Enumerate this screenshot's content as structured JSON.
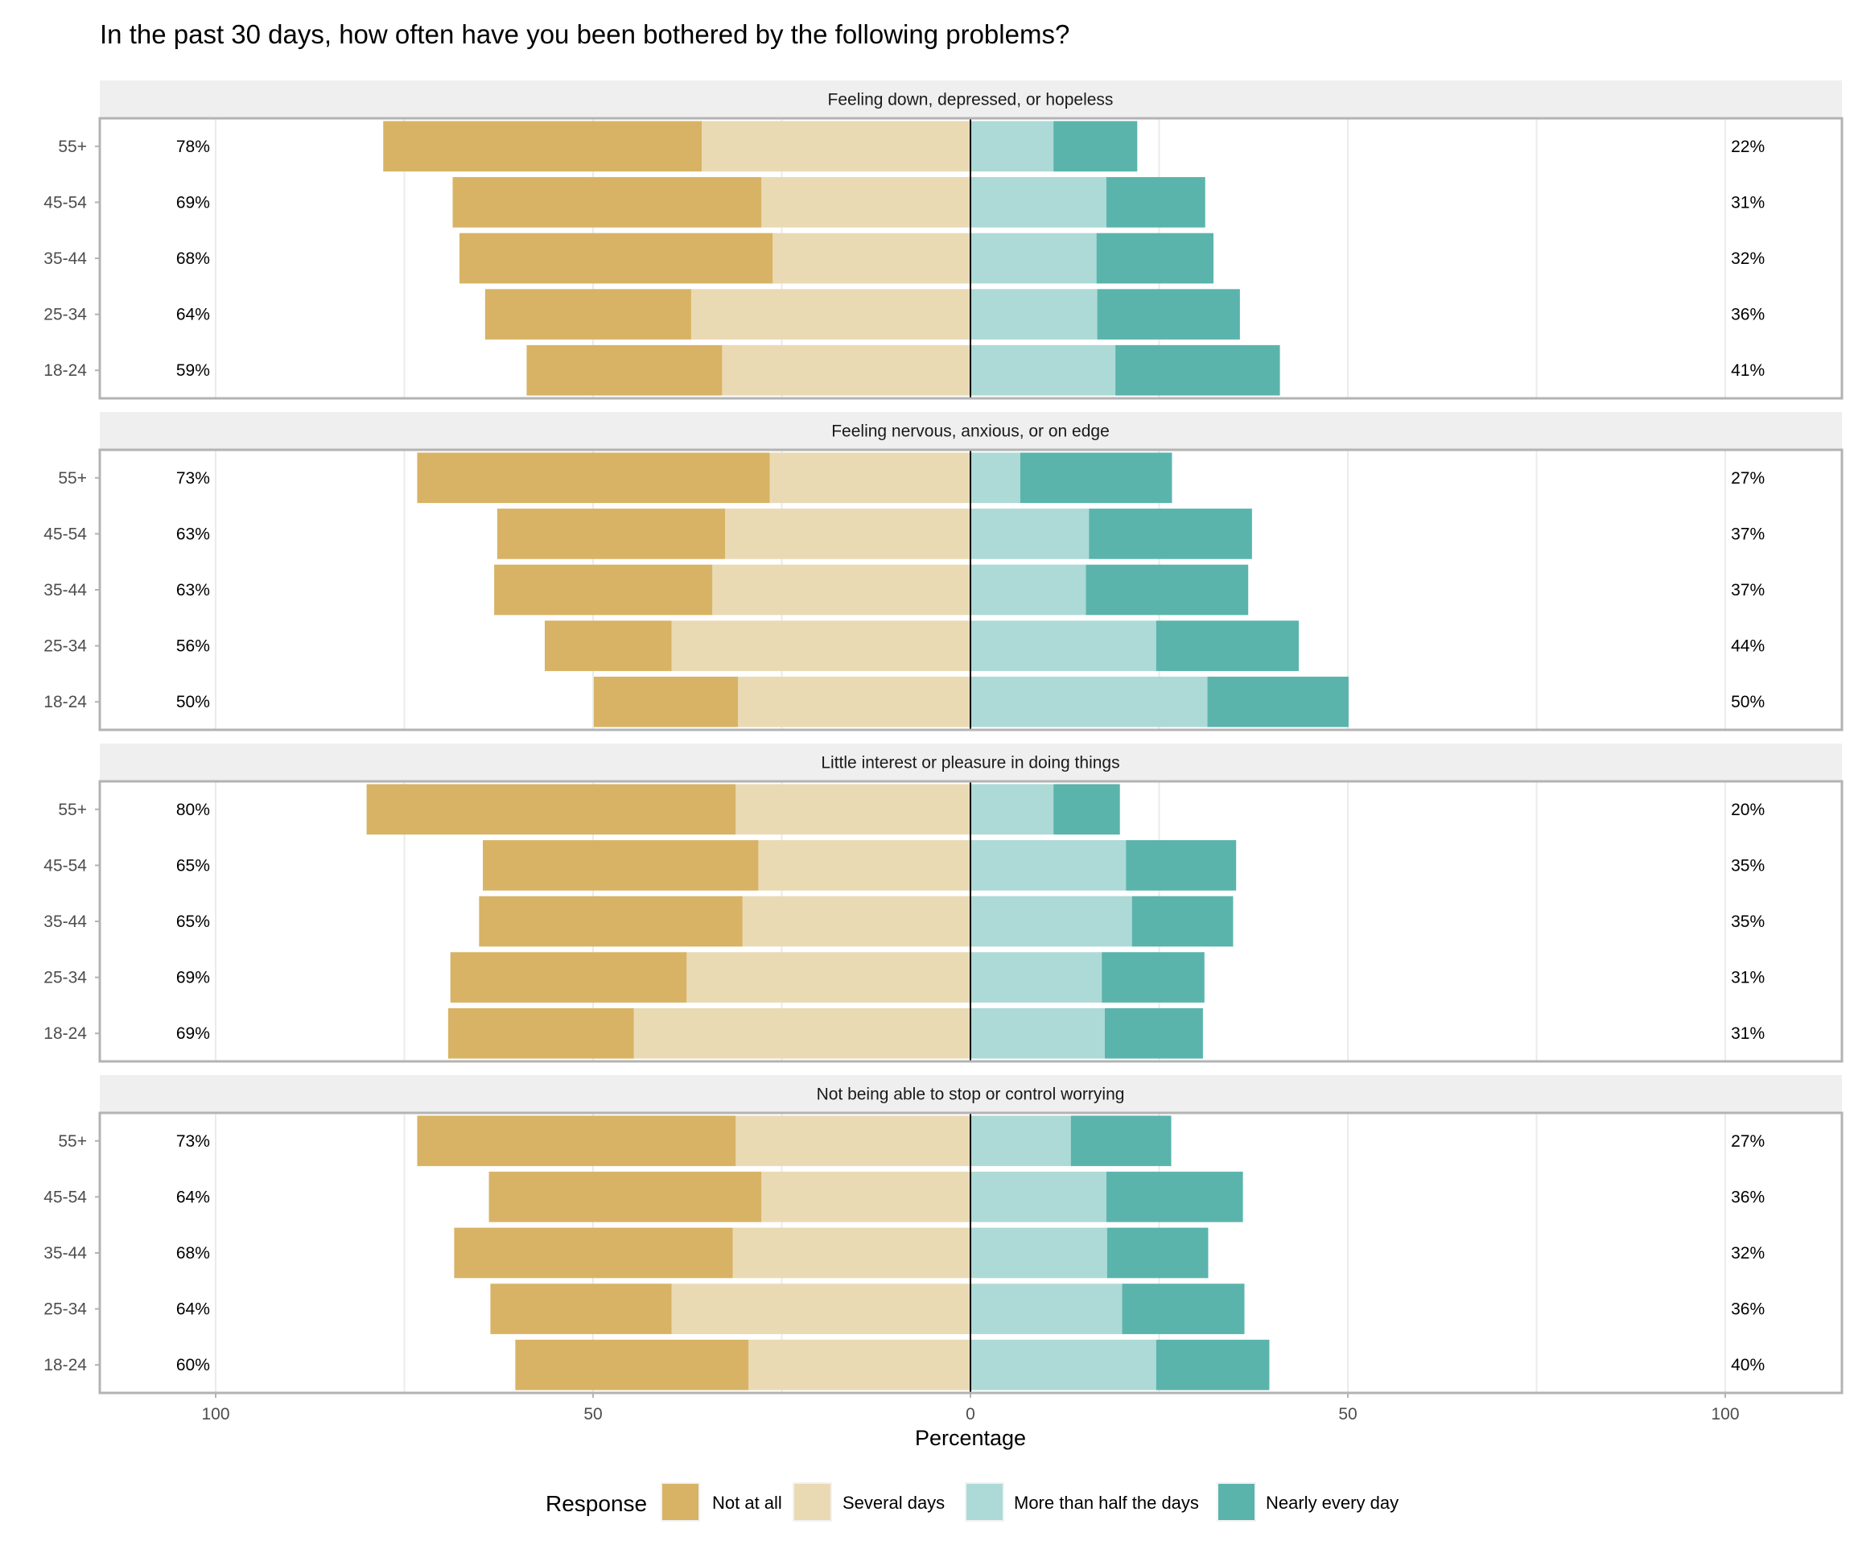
{
  "chart_data": {
    "type": "bar",
    "subtype": "diverging-stacked-horizontal",
    "title": "In the past 30 days, how often have you been bothered by the following problems?",
    "xlabel": "Percentage",
    "ylabel": "",
    "xlim": [
      -115,
      115
    ],
    "x_ticks": [
      -100,
      -50,
      0,
      50,
      100
    ],
    "x_tick_labels": [
      "100",
      "50",
      "0",
      "50",
      "100"
    ],
    "grid": true,
    "categories": [
      "55+",
      "45-54",
      "35-44",
      "25-34",
      "18-24"
    ],
    "legend": {
      "title": "Response",
      "position": "bottom",
      "entries": [
        "Not at all",
        "Several days",
        "More than half the days",
        "Nearly every day"
      ]
    },
    "colors": {
      "Not at all": "#d8b365",
      "Several days": "#eadab4",
      "More than half the days": "#addad6",
      "Nearly every day": "#5ab4ac"
    },
    "negative_series": [
      "Not at all",
      "Several days"
    ],
    "positive_series": [
      "More than half the days",
      "Nearly every day"
    ],
    "panels": [
      {
        "facet": "Feeling down, depressed, or hopeless",
        "series": [
          {
            "name": "Not at all",
            "values": [
              42.2,
              40.9,
              41.5,
              27.3,
              25.9
            ]
          },
          {
            "name": "Several days",
            "values": [
              35.6,
              27.7,
              26.2,
              37.0,
              32.9
            ]
          },
          {
            "name": "More than half the days",
            "values": [
              11.0,
              18.0,
              16.7,
              16.8,
              19.2
            ]
          },
          {
            "name": "Nearly every day",
            "values": [
              11.1,
              13.1,
              15.5,
              18.9,
              21.8
            ]
          }
        ],
        "left_labels": [
          "78%",
          "69%",
          "68%",
          "64%",
          "59%"
        ],
        "right_labels": [
          "22%",
          "31%",
          "32%",
          "36%",
          "41%"
        ]
      },
      {
        "facet": "Feeling nervous, anxious, or on edge",
        "series": [
          {
            "name": "Not at all",
            "values": [
              46.7,
              30.2,
              28.9,
              16.8,
              19.1
            ]
          },
          {
            "name": "Several days",
            "values": [
              26.6,
              32.5,
              34.2,
              39.6,
              30.8
            ]
          },
          {
            "name": "More than half the days",
            "values": [
              6.6,
              15.7,
              15.3,
              24.6,
              31.4
            ]
          },
          {
            "name": "Nearly every day",
            "values": [
              20.1,
              21.6,
              21.5,
              18.9,
              18.7
            ]
          }
        ],
        "left_labels": [
          "73%",
          "63%",
          "63%",
          "56%",
          "50%"
        ],
        "right_labels": [
          "27%",
          "37%",
          "37%",
          "44%",
          "50%"
        ]
      },
      {
        "facet": "Little interest or pleasure in doing things",
        "series": [
          {
            "name": "Not at all",
            "values": [
              48.9,
              36.5,
              34.9,
              31.3,
              24.6
            ]
          },
          {
            "name": "Several days",
            "values": [
              31.1,
              28.1,
              30.2,
              37.6,
              44.6
            ]
          },
          {
            "name": "More than half the days",
            "values": [
              11.0,
              20.6,
              21.4,
              17.4,
              17.8
            ]
          },
          {
            "name": "Nearly every day",
            "values": [
              8.8,
              14.6,
              13.4,
              13.6,
              13.0
            ]
          }
        ],
        "left_labels": [
          "80%",
          "65%",
          "65%",
          "69%",
          "69%"
        ],
        "right_labels": [
          "20%",
          "35%",
          "35%",
          "31%",
          "31%"
        ]
      },
      {
        "facet": "Not being able to stop or control worrying",
        "series": [
          {
            "name": "Not at all",
            "values": [
              42.2,
              36.1,
              36.9,
              24.0,
              30.9
            ]
          },
          {
            "name": "Several days",
            "values": [
              31.1,
              27.7,
              31.5,
              39.6,
              29.4
            ]
          },
          {
            "name": "More than half the days",
            "values": [
              13.3,
              18.0,
              18.1,
              20.1,
              24.6
            ]
          },
          {
            "name": "Nearly every day",
            "values": [
              13.3,
              18.1,
              13.4,
              16.2,
              15.0
            ]
          }
        ],
        "left_labels": [
          "73%",
          "64%",
          "68%",
          "64%",
          "60%"
        ],
        "right_labels": [
          "27%",
          "36%",
          "32%",
          "36%",
          "40%"
        ]
      }
    ],
    "label_positions": {
      "left_labels_at": -103,
      "right_labels_at": 103
    }
  }
}
